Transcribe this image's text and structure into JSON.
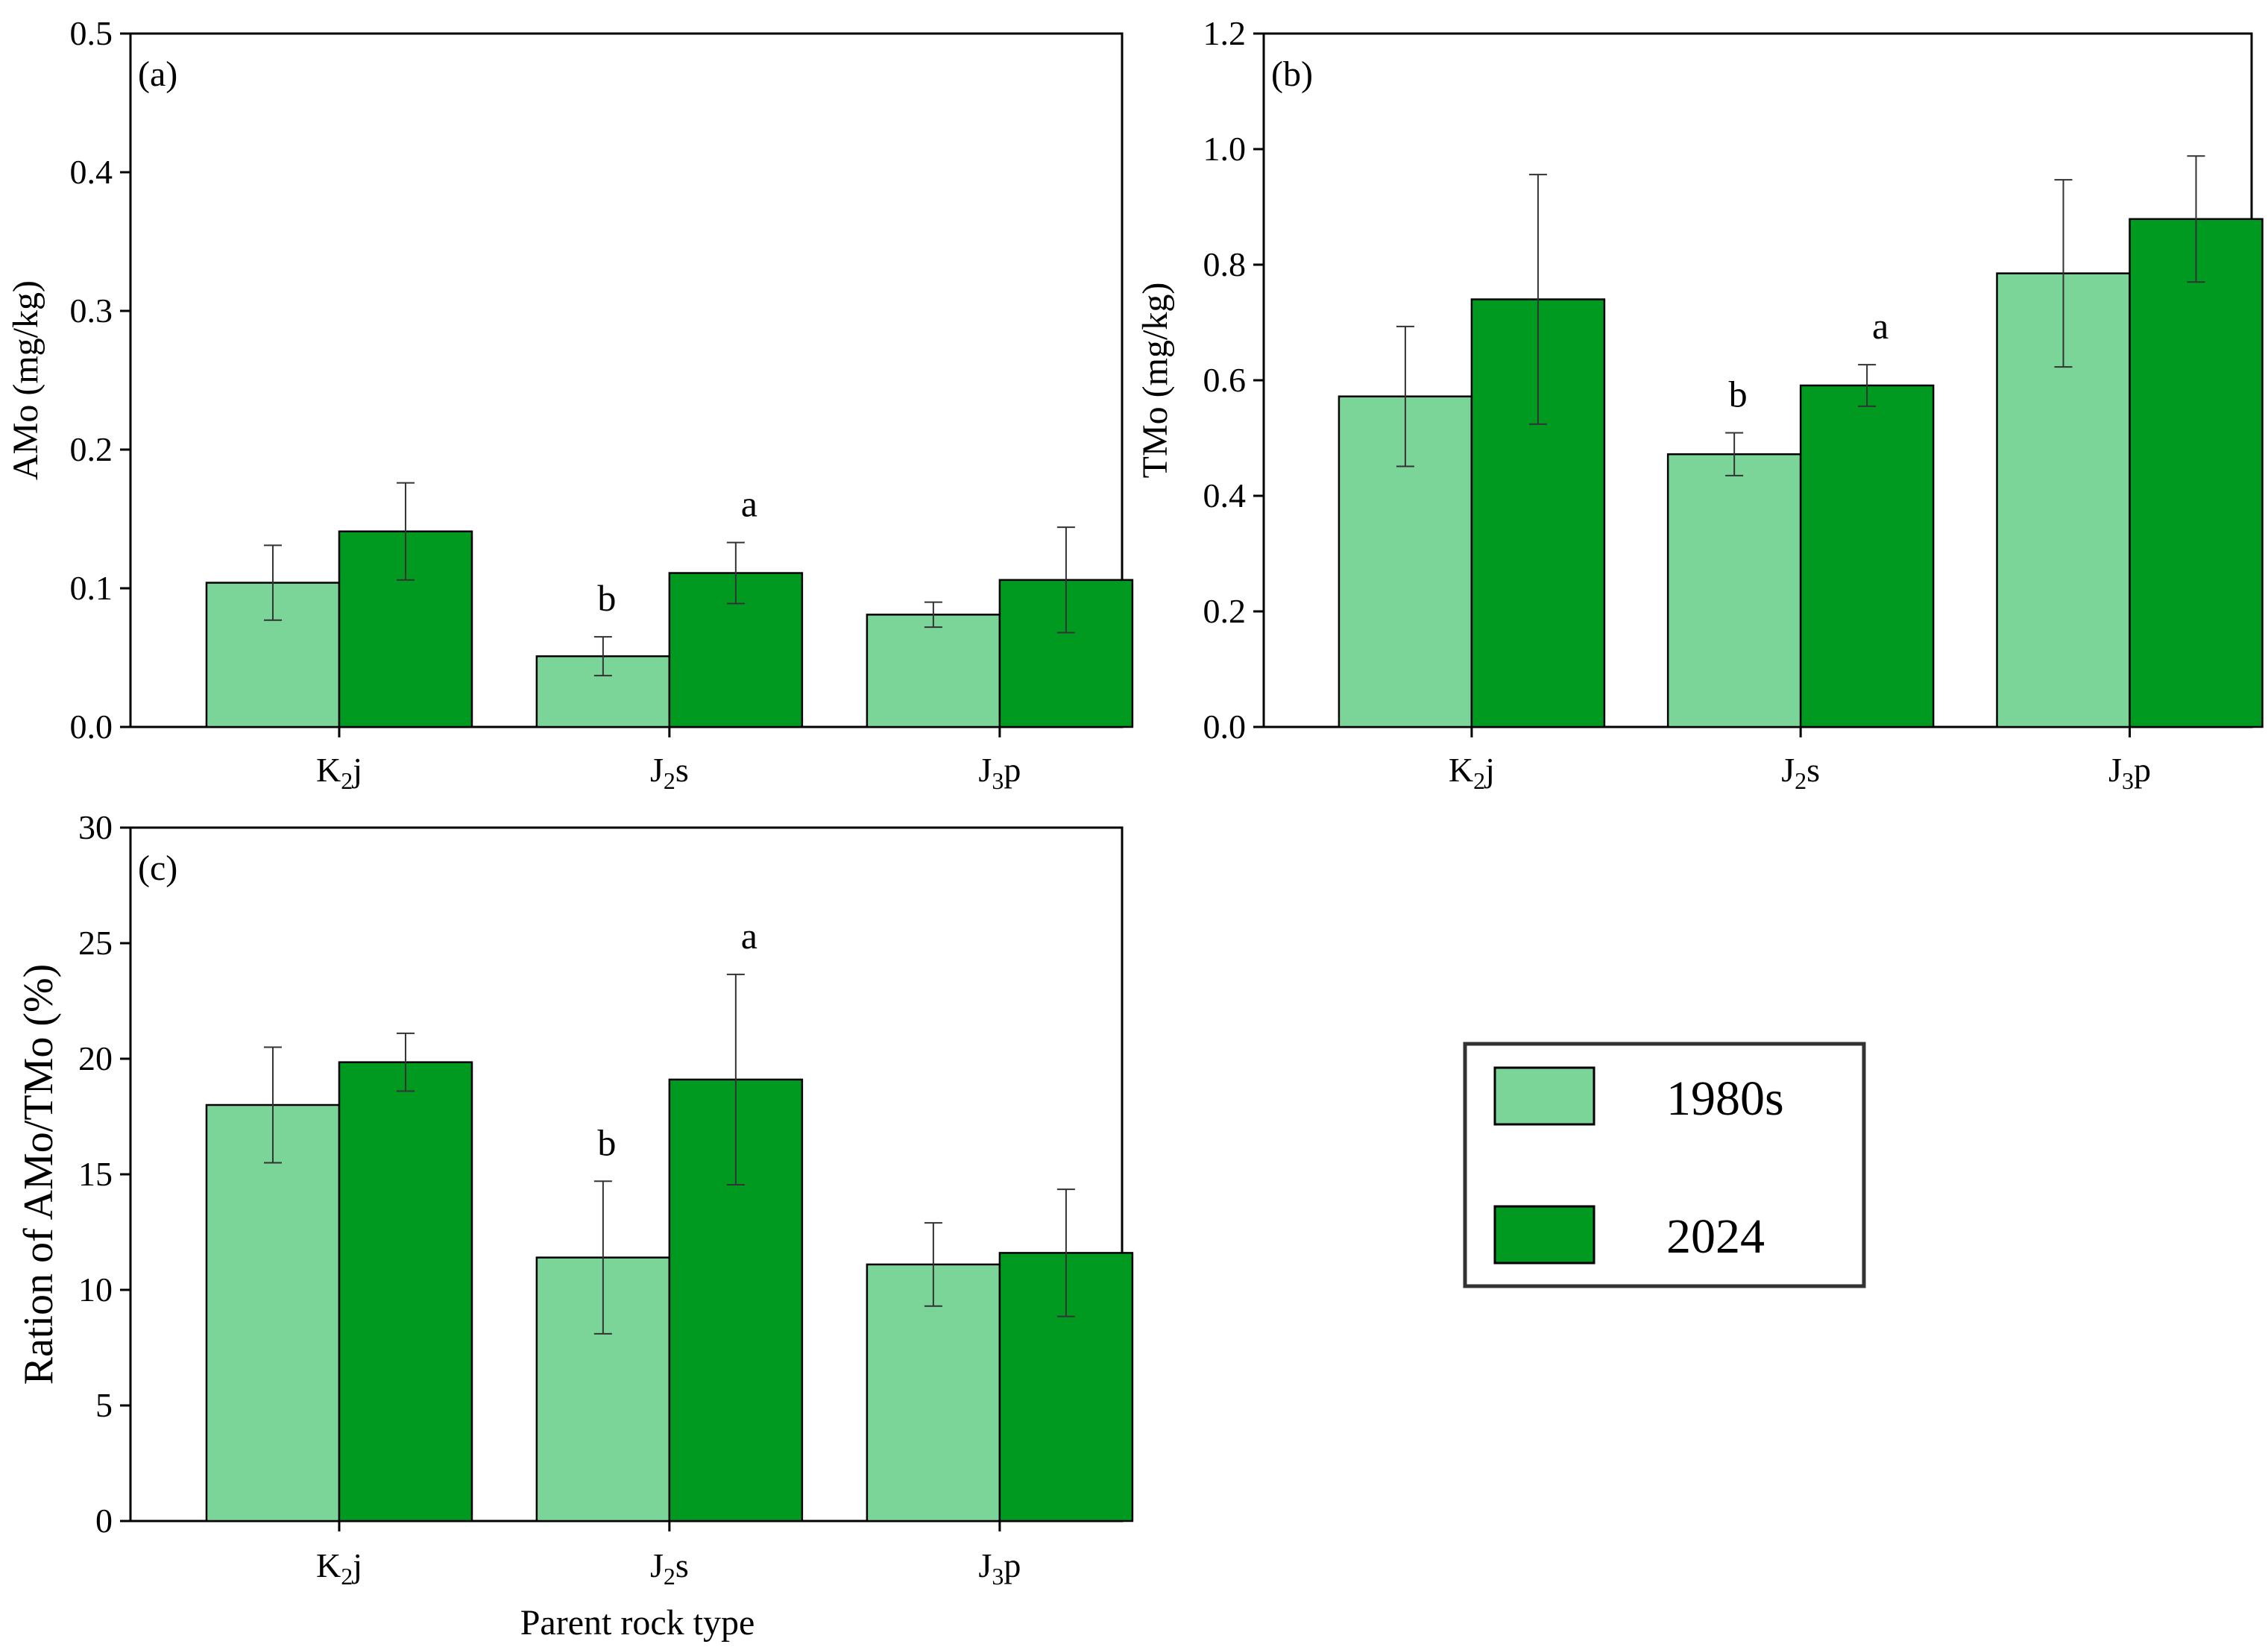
{
  "colors": {
    "s1980": "#7bd598",
    "s2024": "#009a20"
  },
  "legend": {
    "items": [
      {
        "label": "1980s",
        "color": "#7bd598"
      },
      {
        "label": "2024",
        "color": "#009a20"
      }
    ]
  },
  "shared_xlabel": "Parent rock type",
  "chart_data": [
    {
      "id": "a",
      "type": "bar",
      "panel_label": "(a)",
      "ylabel": "AMo (mg/kg)",
      "xlabel": "",
      "ylim": [
        0,
        0.5
      ],
      "yticks": [
        "0.0",
        "0.1",
        "0.2",
        "0.3",
        "0.4",
        "0.5"
      ],
      "categories": [
        {
          "base": "K",
          "sub": "2",
          "tail": "j"
        },
        {
          "base": "J",
          "sub": "2",
          "tail": "s"
        },
        {
          "base": "J",
          "sub": "3",
          "tail": "p"
        }
      ],
      "series": [
        {
          "name": "1980s",
          "values": [
            0.104,
            0.051,
            0.081
          ],
          "errors": [
            0.027,
            0.014,
            0.009
          ]
        },
        {
          "name": "2024",
          "values": [
            0.141,
            0.111,
            0.106
          ],
          "errors": [
            0.035,
            0.022,
            0.038
          ]
        }
      ],
      "significance": [
        {
          "category": 1,
          "series": 0,
          "text": "b"
        },
        {
          "category": 1,
          "series": 1,
          "text": "a"
        }
      ]
    },
    {
      "id": "b",
      "type": "bar",
      "panel_label": "(b)",
      "ylabel": "TMo (mg/kg)",
      "xlabel": "",
      "ylim": [
        0,
        1.2
      ],
      "yticks": [
        "0.0",
        "0.2",
        "0.4",
        "0.6",
        "0.8",
        "1.0",
        "1.2"
      ],
      "categories": [
        {
          "base": "K",
          "sub": "2",
          "tail": "j"
        },
        {
          "base": "J",
          "sub": "2",
          "tail": "s"
        },
        {
          "base": "J",
          "sub": "3",
          "tail": "p"
        }
      ],
      "series": [
        {
          "name": "1980s",
          "values": [
            0.572,
            0.472,
            0.785
          ],
          "errors": [
            0.121,
            0.037,
            0.162
          ]
        },
        {
          "name": "2024",
          "values": [
            0.74,
            0.591,
            0.879
          ],
          "errors": [
            0.216,
            0.036,
            0.109
          ]
        }
      ],
      "significance": [
        {
          "category": 1,
          "series": 0,
          "text": "b"
        },
        {
          "category": 1,
          "series": 1,
          "text": "a"
        }
      ]
    },
    {
      "id": "c",
      "type": "bar",
      "panel_label": "(c)",
      "ylabel": "Ration of AMo/TMo (%)",
      "xlabel": "Parent rock type",
      "ylim": [
        0,
        30
      ],
      "yticks": [
        "0",
        "5",
        "10",
        "15",
        "20",
        "25",
        "30"
      ],
      "categories": [
        {
          "base": "K",
          "sub": "2",
          "tail": "j"
        },
        {
          "base": "J",
          "sub": "2",
          "tail": "s"
        },
        {
          "base": "J",
          "sub": "3",
          "tail": "p"
        }
      ],
      "series": [
        {
          "name": "1980s",
          "values": [
            18.0,
            11.4,
            11.1
          ],
          "errors": [
            2.5,
            3.3,
            1.8
          ]
        },
        {
          "name": "2024",
          "values": [
            19.85,
            19.1,
            11.6
          ],
          "errors": [
            1.25,
            4.55,
            2.75
          ]
        }
      ],
      "significance": [
        {
          "category": 1,
          "series": 0,
          "text": "b"
        },
        {
          "category": 1,
          "series": 1,
          "text": "a"
        }
      ]
    }
  ]
}
